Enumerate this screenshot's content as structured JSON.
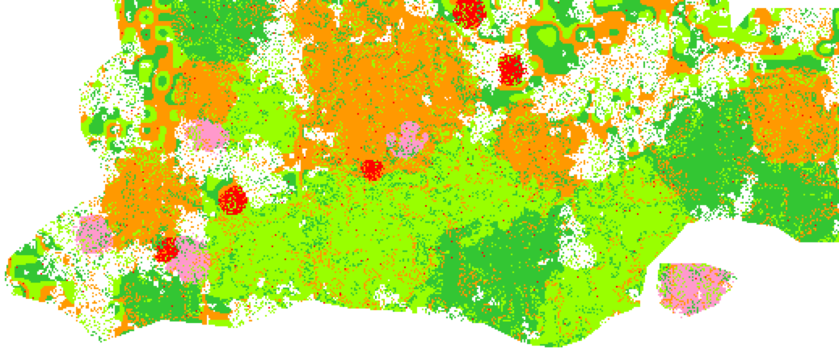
{
  "map": {
    "type": "land-cover classification raster",
    "background": "#ffffff",
    "palette": {
      "dark_green": "#33c633",
      "light_green": "#99ff00",
      "orange": "#ff9900",
      "pink": "#ff99cc",
      "red": "#ff0000"
    }
  }
}
